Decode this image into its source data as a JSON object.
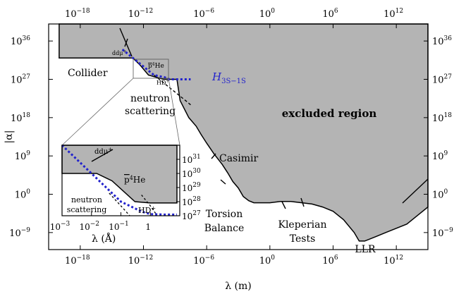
{
  "chart_data": {
    "type": "area",
    "xlabel": "λ (m)",
    "ylabel": "|α|",
    "x_scale": "log",
    "y_scale": "log",
    "xlim": [
      1e-21,
      1000000000000000.0
    ],
    "ylim": [
      1e-13,
      1e+40
    ],
    "x_ticks": [
      {
        "value": 1e-18,
        "label": "10",
        "exp": "−18"
      },
      {
        "value": 1e-12,
        "label": "10",
        "exp": "−12"
      },
      {
        "value": 1e-06,
        "label": "10",
        "exp": "−6"
      },
      {
        "value": 1,
        "label": "10",
        "exp": "0"
      },
      {
        "value": 1000000.0,
        "label": "10",
        "exp": "6"
      },
      {
        "value": 1000000000000.0,
        "label": "10",
        "exp": "12"
      }
    ],
    "y_ticks": [
      {
        "value": 1e+36,
        "label": "10",
        "exp": "36"
      },
      {
        "value": 1e+27,
        "label": "10",
        "exp": "27"
      },
      {
        "value": 1e+18,
        "label": "10",
        "exp": "18"
      },
      {
        "value": 1000000000.0,
        "label": "10",
        "exp": "9"
      },
      {
        "value": 1,
        "label": "10",
        "exp": "0"
      },
      {
        "value": 1e-09,
        "label": "10",
        "exp": "−9"
      }
    ],
    "excluded_boundary": [
      [
        1e-20,
        1e+40
      ],
      [
        1e-20,
        1e+32
      ],
      [
        1e-13,
        1e+32
      ],
      [
        5e-13,
        2e+30
      ],
      [
        3e-12,
        1e+28
      ],
      [
        8e-11,
        1e+27
      ],
      [
        1.5e-09,
        1e+27
      ],
      [
        3e-09,
        1e+22
      ],
      [
        2e-08,
        1e+18
      ],
      [
        1e-07,
        1e+16
      ],
      [
        3e-07,
        100000000000000.0
      ],
      [
        1e-06,
        1000000000000.0
      ],
      [
        5e-06,
        3000000000.0
      ],
      [
        3e-05,
        10000000.0
      ],
      [
        0.0001,
        100000.0
      ],
      [
        0.0003,
        1000.0
      ],
      [
        0.001,
        30.0
      ],
      [
        0.003,
        0.3
      ],
      [
        0.01,
        0.03
      ],
      [
        0.03,
        0.01
      ],
      [
        0.1,
        0.01
      ],
      [
        1,
        0.01
      ],
      [
        10,
        0.02
      ],
      [
        100.0,
        0.02
      ],
      [
        10000.0,
        0.005
      ],
      [
        100000.0,
        0.001
      ],
      [
        1000000.0,
        0.0001
      ],
      [
        10000000.0,
        1e-06
      ],
      [
        100000000.0,
        1e-09
      ],
      [
        300000000.0,
        1e-11
      ],
      [
        1000000000.0,
        1e-11
      ],
      [
        10000000000.0,
        1e-10
      ],
      [
        100000000000.0,
        1e-09
      ],
      [
        1000000000000.0,
        1e-08
      ],
      [
        10000000000000.0,
        1e-07
      ],
      [
        100000000000000.0,
        1e-05
      ],
      [
        1000000000000000.0,
        0.001
      ],
      [
        1000000000000000.0,
        1e+40
      ]
    ],
    "series": [
      {
        "name": "H",
        "name_sub": "3S−1S",
        "color": "#2222cc",
        "style": "dotted",
        "x": [
          1e-14,
          1e-13,
          1e-12,
          1e-11,
          1e-10,
          3e-10,
          1e-09,
          5e-09,
          3e-08
        ],
        "y": [
          1e+34,
          1e+32,
          1e+30,
          1e+28,
          3e+27,
          1e+27,
          1e+27,
          1e+27,
          1e+27
        ]
      },
      {
        "name": "",
        "color": "#000000",
        "style": "dashed",
        "x": [
          1e-11,
          1e-10,
          1e-09,
          1e-08,
          3e-08
        ],
        "y": [
          1e+28,
          1e+26,
          1e+24,
          1e+22,
          1e+21
        ]
      }
    ],
    "labels": {
      "excluded": "excluded region",
      "collider": "Collider",
      "neutron": "neutron",
      "scattering": "scattering",
      "casimir": "Casimir",
      "torsion": "Torsion",
      "balance": "Balance",
      "kleperian": "Kleperian",
      "tests": "Tests",
      "llr": "LLR",
      "ddmu": "ddμ",
      "ddmu_sup": "+",
      "pbarhe": "p",
      "pbarhe_sup": "4",
      "pbarhe_he": "He",
      "hd": "HD",
      "hd_sup": "+"
    },
    "inset": {
      "xlabel": "λ (Å)",
      "x_scale": "log",
      "y_scale": "log",
      "xlim": [
        0.001,
        10
      ],
      "ylim": [
        1e+27,
        1e+32
      ],
      "x_ticks": [
        {
          "value": 0.001,
          "label": "10",
          "exp": "−3"
        },
        {
          "value": 0.01,
          "label": "10",
          "exp": "−2"
        },
        {
          "value": 0.1,
          "label": "10",
          "exp": "−1"
        },
        {
          "value": 1,
          "label": "1",
          "exp": ""
        }
      ],
      "y_ticks": [
        {
          "value": 1e+31,
          "label": "10",
          "exp": "31"
        },
        {
          "value": 1e+30,
          "label": "10",
          "exp": "30"
        },
        {
          "value": 1e+29,
          "label": "10",
          "exp": "29"
        },
        {
          "value": 1e+28,
          "label": "10",
          "exp": "28"
        },
        {
          "value": 1e+27,
          "label": "10",
          "exp": "27"
        }
      ],
      "excluded_boundary": [
        [
          0.001,
          1e+32
        ],
        [
          0.001,
          1e+30
        ],
        [
          0.015,
          1e+30
        ],
        [
          0.05,
          3e+29
        ],
        [
          0.3,
          1e+28
        ],
        [
          1,
          8e+27
        ],
        [
          8,
          8e+27
        ],
        [
          8,
          1e+32
        ]
      ],
      "blue_dotted": {
        "x": [
          0.001,
          0.01,
          0.1,
          0.5,
          1,
          3,
          8
        ],
        "y": [
          1e+32,
          1e+30,
          1e+28,
          2e+27,
          1.3e+27,
          1.2e+27,
          1.2e+27
        ]
      },
      "dashed_1": {
        "x": [
          0.04,
          0.1,
          0.2
        ],
        "y": [
          4e+28,
          5e+27,
          1e+27
        ]
      },
      "dashed_2": {
        "x": [
          0.5,
          1,
          1.5
        ],
        "y": [
          3e+28,
          5e+27,
          1.5e+27
        ]
      }
    }
  }
}
